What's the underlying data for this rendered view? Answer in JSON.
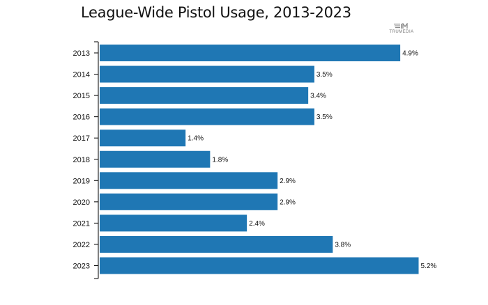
{
  "header": {
    "title": "League-Wide Pistol Usage, 2013-2023",
    "logo_text": "TRUMEDIA"
  },
  "colors": {
    "bar": "#1f77b4",
    "axis": "#000000",
    "text": "#111111"
  },
  "chart_data": {
    "type": "bar",
    "orientation": "horizontal",
    "title": "League-Wide Pistol Usage, 2013-2023",
    "xlabel": "",
    "ylabel": "",
    "categories": [
      "2013",
      "2014",
      "2015",
      "2016",
      "2017",
      "2018",
      "2019",
      "2020",
      "2021",
      "2022",
      "2023"
    ],
    "values": [
      4.9,
      3.5,
      3.4,
      3.5,
      1.4,
      1.8,
      2.9,
      2.9,
      2.4,
      3.8,
      5.2
    ],
    "labels": [
      "4.9%",
      "3.5%",
      "3.4%",
      "3.5%",
      "1.4%",
      "1.8%",
      "2.9%",
      "2.9%",
      "2.4%",
      "3.8%",
      "5.2%"
    ],
    "xlim": [
      0,
      5.2
    ],
    "grid": false,
    "legend": "none"
  }
}
